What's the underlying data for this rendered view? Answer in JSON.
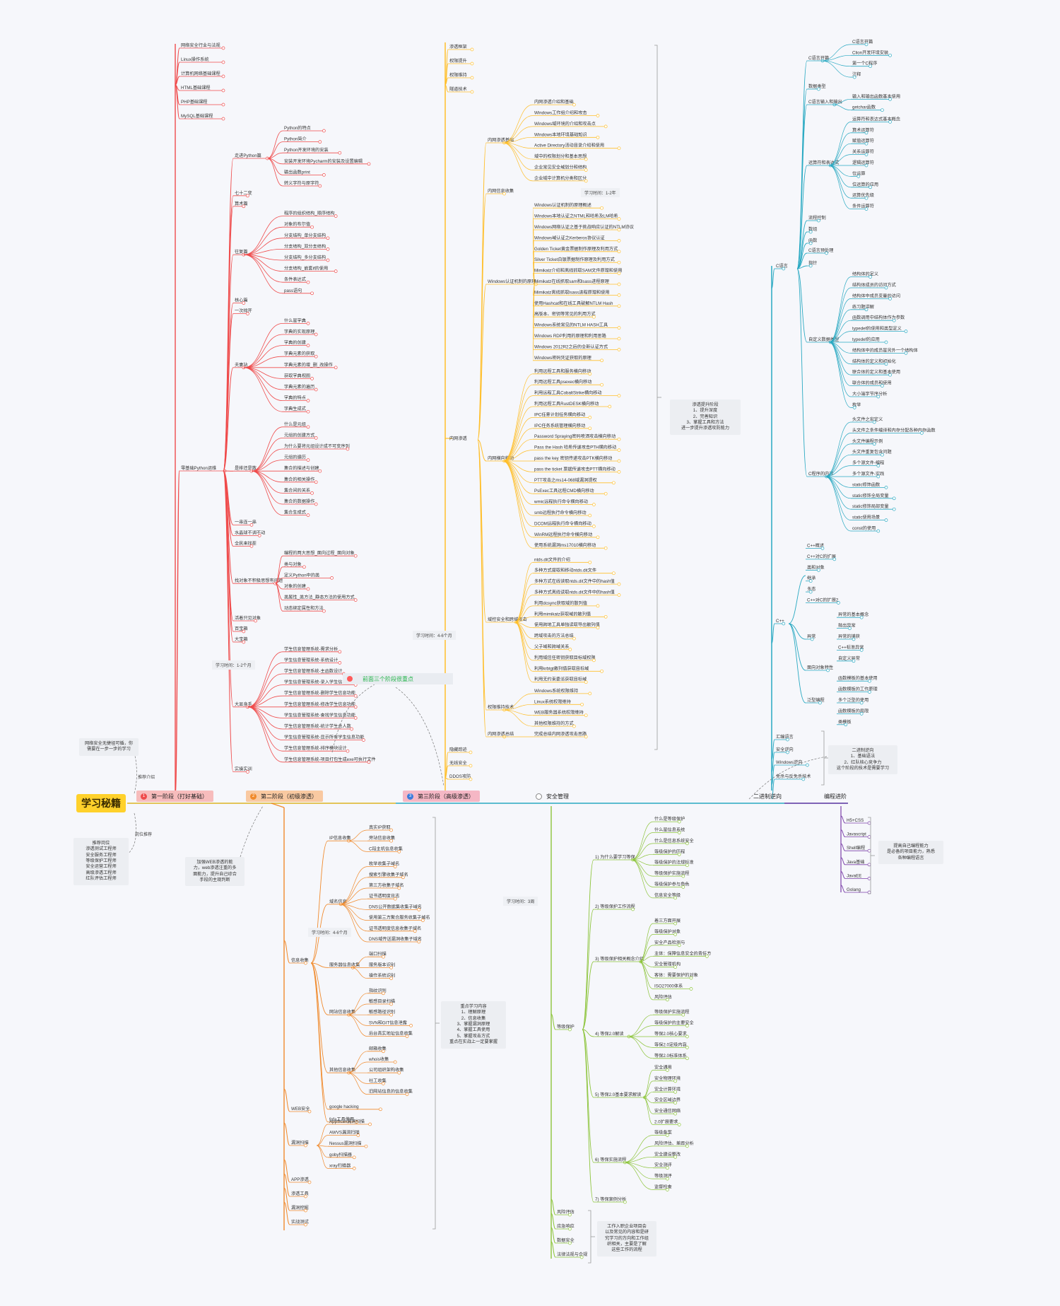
{
  "root": {
    "label": "学习秘籍"
  },
  "stages": [
    {
      "label": "第一阶段（打好基础）",
      "color": "#ef4b4b",
      "bg": "#f7bcbc",
      "num": "1"
    },
    {
      "label": "第二阶段（初级渗透）",
      "color": "#f08a2c",
      "bg": "#f9c9a1",
      "num": "2"
    },
    {
      "label": "第三阶段（高级渗透）",
      "color": "#e24b68",
      "bg": "#f5b7c5",
      "num": "3"
    },
    {
      "label": "安全管理",
      "color": "#444444",
      "bg": "#f6f7fb",
      "num": ""
    },
    {
      "label": "二进制逆向",
      "color": "#29a9c2",
      "bg": "#f6f7fb",
      "num": ""
    },
    {
      "label": "编程进阶",
      "color": "#7a3fa8",
      "bg": "#f6f7fb",
      "num": ""
    }
  ],
  "notes": {
    "left_top": "网络安全无捷径可循，你\n需要在一步一步的学习",
    "left_bottom": "推荐岗位\n渗透测试工程师\n安全服务工程师\n等级保护工程师\n安全运营工程师\n高级渗透工程师\n红队评估工程师",
    "stage2": "加强WEB渗透的能\n力，web渗透注重的多\n面能力，提升自己综合\n手段的主观判断",
    "stage3": "渗透提升阶段\n1、提升深度\n2、完善知识\n3、掌握工具和方法\n进一步提升渗透攻防能力",
    "stage2_focus": "重点学习内容\n1、理解原理\n2、信息收集\n3、掌握漏洞原理\n4、掌握工具使用\n5、掌握攻击方式\n重点在实战上一定要掌握",
    "reverse": "二进制逆向\n1、基础语法\n2、红队核心竞争力\n这个阶段的技术是需要学习",
    "prog": "提高自己编程能力\n是必备的项目能力，熟悉\n各种编程语言",
    "mgmt": "工作入职企业项目会\n以及常见的内容和是研\n究学习的方向和工作组\n织相关，主要是了解\n这些工作的流程"
  },
  "tags": {
    "stage1_time": "学习时间：1-2个月",
    "stage2_time": "学习时间：4-6个月",
    "stage3_time": "学习时间：4-6个月",
    "stage3_time2": "学习时间：1-2年",
    "mgmt_time": "学习时间：3周",
    "highlight": "前面三个阶段很重点",
    "path_a": "推荐介绍",
    "path_b": "岗位推荐"
  },
  "branches": {
    "stage1_top": [
      "网络安全行业与法规",
      "Linux操作系统",
      "计算机网络基础课程",
      "HTML基础课程",
      "PHP基础课程",
      "MySQL基础课程"
    ],
    "python": {
      "label": "零基础Python运维",
      "groups": [
        {
          "label": "走进Python篇",
          "items": [
            "Python的特点",
            "Python简介",
            "Python开发环境的安装",
            "安装开发环境Pycharm的安装及设置编辑",
            "输出函数print",
            "转义字符与原字符"
          ]
        },
        {
          "label": "七十二变",
          "items": []
        },
        {
          "label": "算术篇",
          "items": []
        },
        {
          "label": "往复篇",
          "items": [
            "程序的组织结构_顺序结构",
            "对象的布尔值",
            "分支结构_单分支结构",
            "分支结构_双分支结构",
            "分支结构_多分支结构",
            "分支结构_嵌套if的使用",
            "条件表达式",
            "pass语句"
          ]
        },
        {
          "label": "核心篇",
          "items": []
        },
        {
          "label": "一次排开",
          "items": []
        },
        {
          "label": "夫妻站",
          "items": [
            "什么是字典",
            "字典的实现原理",
            "字典的创建",
            "字典元素的获取",
            "字典元素的增_删_改操作",
            "获取字典视图",
            "字典元素的遍历",
            "字典的特点",
            "字典生成式"
          ]
        },
        {
          "label": "是排还是散",
          "items": [
            "什么是元组",
            "元组的创建方式",
            "为什么要将元组设计成不可变序列",
            "元组的遍历",
            "集合的描述与创建",
            "集合的相关操作",
            "集合间的关系",
            "集合的数据操作",
            "集合生成式"
          ]
        },
        {
          "label": "一串连一串",
          "items": []
        },
        {
          "label": "水晶球不调不动",
          "items": []
        },
        {
          "label": "全民来找茬",
          "items": []
        },
        {
          "label": "找对象不积极思想有问题",
          "items": [
            "编程的两大思想_面向过程_面向对象",
            "类与对象",
            "定义Python中的类",
            "对象的创建",
            "类属性_类方法_静态方法的使用方式",
            "动态绑定属性和方法"
          ]
        },
        {
          "label": "活着只见对象",
          "items": []
        },
        {
          "label": "百宝箱",
          "items": []
        },
        {
          "label": "大宝箱",
          "items": []
        },
        {
          "label": "大显身手",
          "items": [
            "学生信息管理系统-需求分析",
            "学生信息管理系统-系统设计",
            "学生信息管理系统-主函数设计",
            "学生信息管理系统-录入学生信息功能",
            "学生信息管理系统-删除学生信息功能",
            "学生信息管理系统-修改学生信息功能",
            "学生信息管理系统-查找学生信息功能",
            "学生信息管理系统-统计学生总人数",
            "学生信息管理系统-显示所有学生信息功能",
            "学生信息管理系统-排序模块设计",
            "学生信息管理系统-项目打包生成exe可执行文件"
          ]
        },
        {
          "label": "实操实训",
          "items": []
        }
      ]
    },
    "stage2": {
      "groups": [
        {
          "label": "信息收集",
          "subgroups": [
            {
              "label": "IP信息收集",
              "items": [
                "真实IP获取",
                "旁站信息收集",
                "C段主机信息收集"
              ]
            },
            {
              "label": "域名信息",
              "items": [
                "枚举收集子域名",
                "搜索引擎收集子域名",
                "第三方收集子域名",
                "证书透明度日志",
                "DNS公开数据集收集子域名",
                "使用第三方聚合服务收集子域名",
                "证书透明度信息收集子域名",
                "DNS域传送漏洞收集子域名"
              ]
            },
            {
              "label": "服务器信息收集",
              "items": [
                "端口扫描",
                "服务版本识别",
                "操作系统识别"
              ]
            },
            {
              "label": "网站信息收集",
              "items": [
                "指纹识别",
                "敏感目录扫描",
                "敏感路径识别",
                "SVN和GIT信息泄露",
                "后台真实地址信息收集"
              ]
            },
            {
              "label": "其他信息收集",
              "items": [
                "邮箱收集",
                "whois收集",
                "公司组织架构收集",
                "社工收集",
                "旧网站信息的信息收集"
              ]
            },
            {
              "label": "google hacking",
              "items": []
            },
            {
              "label": "fofa工具使用",
              "items": []
            }
          ]
        },
        {
          "label": "WEB安全",
          "subgroups": []
        },
        {
          "label": "漏洞扫描",
          "subgroups": [
            {
              "label": "",
              "items": [
                "AppScan漏洞扫描",
                "AWVS漏洞扫描",
                "Nessus漏洞扫描",
                "goby扫描器",
                "xray扫描器"
              ]
            }
          ]
        },
        {
          "label": "APP渗透",
          "subgroups": []
        },
        {
          "label": "渗透工具",
          "subgroups": []
        },
        {
          "label": "漏洞挖掘",
          "subgroups": []
        },
        {
          "label": "实战测试",
          "subgroups": []
        }
      ]
    },
    "stage3": {
      "top": [
        "渗透框架",
        "权限提升",
        "权限维持",
        "隧道技术"
      ],
      "groups": [
        {
          "label": "内网渗透基础",
          "items": [
            "内网渗透介绍和基础",
            "Windows工作组介绍和攻击",
            "Windows域环境的介绍和攻击点",
            "Windows本地环境基础知识",
            "Active Directory活动目录介绍和使用",
            "域中的权限划分和基本思想",
            "企业常见安全域划分和结构",
            "企业域中计算机分类和区分"
          ]
        },
        {
          "label": "内网信息收集",
          "items": []
        },
        {
          "label": "Windows认证机制的原理",
          "items": [
            "Windows认证机制的原理概述",
            "Windows本地认证之NTML和哈希及LM哈希",
            "Windows网络认证之基于挑战响应认证的NTLM协议",
            "Windows域认证之Kerberos协议认证",
            "Golden Ticket黄金票据制作原理及利用方式",
            "Silver Ticket白银票据制作原理及利用方式",
            "Mimikatz介绍和离线抓取SAM文件原理和使用",
            "Mimikatz在线抓取sam和lsass进程原理",
            "Mimikatz离线抓取lsass进程原理和使用",
            "使用Hashcat和在线工具破解NTLM Hash",
            "高版本、密钥等常见的利用方式",
            "Windows系统常见的NTLM HASH工具",
            "Windows RDP利用的原理和利用思路",
            "Windows 2012R2之后的全新认证方式",
            "Windows密码凭证获取的原理"
          ]
        },
        {
          "label": "内网横向移动",
          "items": [
            "利用远程工具和服务横向移动",
            "利用远程工具psexec横向移动",
            "利用远程工具CobaltStrike横向移动",
            "利用远程工具RustDESK横向移动",
            "IPC任意计划任务横向移动",
            "IPC任务系统管理横向移动",
            "Password Spraying密码喷洒攻击横向移动",
            "Pass the Hash 哈希传递攻击PTH横向移动",
            "pass the key 密钥传递攻击PTK横向移动",
            "pass the ticket 票据传递攻击PTT横向移动",
            "PTT攻击之ms14-068域漏洞提权",
            "PsExec工具远程CMD横向移动",
            "wmic远程执行命令横向移动",
            "smb远程执行命令横向移动",
            "DCOM远程执行命令横向移动",
            "WinRM远程执行命令横向移动",
            "使用系统漏洞ms17010横向移动"
          ]
        },
        {
          "label": "域控安全和跨域攻击",
          "items": [
            "ntds.dit文件的介绍",
            "多种方式提取和移动ntds.dit文件",
            "多种方式在线读取ntds.dit文件中的hash值",
            "多种方式离线读取ntds.dit文件中的hash值",
            "利用dcsync获取域的散列值",
            "利用mimikatz获取域的散列值",
            "使用跨地工具单独读取导出散列值",
            "跨域攻击的方法总结",
            "父子域和跨域关系",
            "利用域信任密钥获取目标域权限",
            "利用krbtgt散列值获取目标域",
            "利用无约束委派获取目标域"
          ]
        },
        {
          "label": "权限维持技术",
          "items": [
            "Windows系统权限维持",
            "Linux系统权限维持",
            "WEB服务器系统权限维持",
            "其他权限维持的方式"
          ]
        },
        {
          "label": "内网渗透总结",
          "items": [
            "完成总结内网渗透攻击思路"
          ]
        }
      ],
      "bottom": [
        "隐藏踪迹",
        "无线安全",
        "DDOS攻防"
      ]
    },
    "mgmt": {
      "groups": [
        {
          "label": "等级保护",
          "subgroups": [
            {
              "label": "1) 为什么要学习等保",
              "items": [
                "什么是等级保护",
                "什么是信息系统",
                "什么是信息系统安全",
                "等级保护的历程",
                "等级保护的法规标准",
                "等级保护实施流程",
                "等级保护参与角色",
                "信息安全等级"
              ]
            },
            {
              "label": "2) 等级保护工作流程",
              "items": []
            },
            {
              "label": "3) 等级保护相关概念介绍",
              "items": [
                "着三方面开展",
                "等级保护对象",
                "安全产品检测与",
                " 主体：保障信息安全的责任方",
                "安全管理机构",
                "客体：需要保护的对象",
                "ISO27000体系",
                "风险评估"
              ]
            },
            {
              "label": "4) 等保2.0解读",
              "items": [
                "等级保护实施流程",
                "等级保护的主要安全",
                "等保2.0核心要求",
                "等保2.0定级内容",
                "等保2.0标准体系"
              ]
            },
            {
              "label": "5) 等保2.0基本要求解读",
              "items": [
                "安全通用",
                "安全物理环境",
                "安全计算环境",
                "安全区域边界",
                "安全通信网络",
                "2.0扩展要求"
              ]
            },
            {
              "label": "6) 等保实施流程",
              "items": [
                "等级备案",
                "风险评估、差距分析",
                "安全建设整改",
                "安全测评",
                "等级测评",
                "监督检查"
              ]
            },
            {
              "label": "7) 等保案例分析",
              "items": []
            }
          ]
        },
        {
          "label": "风险评估",
          "subgroups": []
        },
        {
          "label": "应急响应",
          "subgroups": []
        },
        {
          "label": "数据安全",
          "subgroups": []
        },
        {
          "label": "法律法规与合规",
          "subgroups": []
        }
      ]
    },
    "reverse": {
      "groups": [
        {
          "label": "C语言",
          "subgroups": [
            {
              "label": "C语言开篇",
              "items": [
                "C语言开篇",
                "Clion开发环境安装",
                "第一个C程序",
                "注释"
              ]
            },
            {
              "label": "数据类型",
              "items": []
            },
            {
              "label": "C语言输入和输出",
              "items": [
                "输入和输出函数基本使用",
                "getchar函数"
              ]
            },
            {
              "label": "运算符和表达式",
              "items": [
                "运算符和表达式基本概念",
                "算术运算符",
                "赋值运算符",
                "关系运算符",
                "逻辑运算符",
                "位运算",
                "位运算的应用",
                "运算优先级",
                "条件运算符"
              ]
            },
            {
              "label": "流程控制",
              "items": []
            },
            {
              "label": "数组",
              "items": []
            },
            {
              "label": "函数",
              "items": []
            },
            {
              "label": "C语言预处理",
              "items": []
            },
            {
              "label": "指针",
              "items": []
            },
            {
              "label": "自定义数据类型",
              "items": [
                "结构体的定义",
                "结构体成员的访问方式",
                "结构体中成员变量的访问",
                "练习题讲解",
                "函数调用中结构体作为参数",
                "typedef的使用和类型定义",
                "typedef的应用",
                "结构体中的成员是另外一个结构体",
                "结构体的定义和初始化",
                "联合体的定义和基本使用",
                "联合体的成员和使用",
                "大小端字节序分析",
                "枚举"
              ]
            },
            {
              "label": "C程序的内存",
              "items": [
                "头文件之宏定义",
                "头文件之条件编译和内存分配各种内存函数",
                "头文件编程示例",
                "头文件重复包含问题",
                "多个源文件-编程",
                "多个源文件-实践",
                "static修饰函数",
                "static修饰全局变量",
                "static修饰局部变量",
                "static使用场景",
                "const的使用"
              ]
            }
          ]
        },
        {
          "label": "C++",
          "subgroups": [
            {
              "label": "",
              "items": [
                "C++概述",
                "C++对C的扩展",
                "类和对象",
                "继承",
                "多态",
                "C++对C的扩展2"
              ]
            },
            {
              "label": "异常",
              "items": [
                "异常的基本概念",
                "抛出异常",
                "异常的捕获",
                "C++标准异常",
                "自定义异常"
              ]
            },
            {
              "label": "面向对象特性",
              "items": []
            },
            {
              "label": "泛型编程",
              "items": [
                "函数模板的基本使用",
                "函数模板的工作原理",
                "多个泛型的使用",
                "函数模板的局限",
                "类模板"
              ]
            }
          ]
        },
        {
          "label": "汇编语言",
          "subgroups": []
        },
        {
          "label": "安全逆向",
          "subgroups": []
        },
        {
          "label": "Windows逆向",
          "subgroups": []
        },
        {
          "label": "免杀与反免杀技术",
          "subgroups": []
        }
      ]
    },
    "programming": [
      "H5+CSS",
      "Javascript",
      "Shell编程",
      "Java基础",
      "JavaEE",
      "Golang"
    ]
  }
}
